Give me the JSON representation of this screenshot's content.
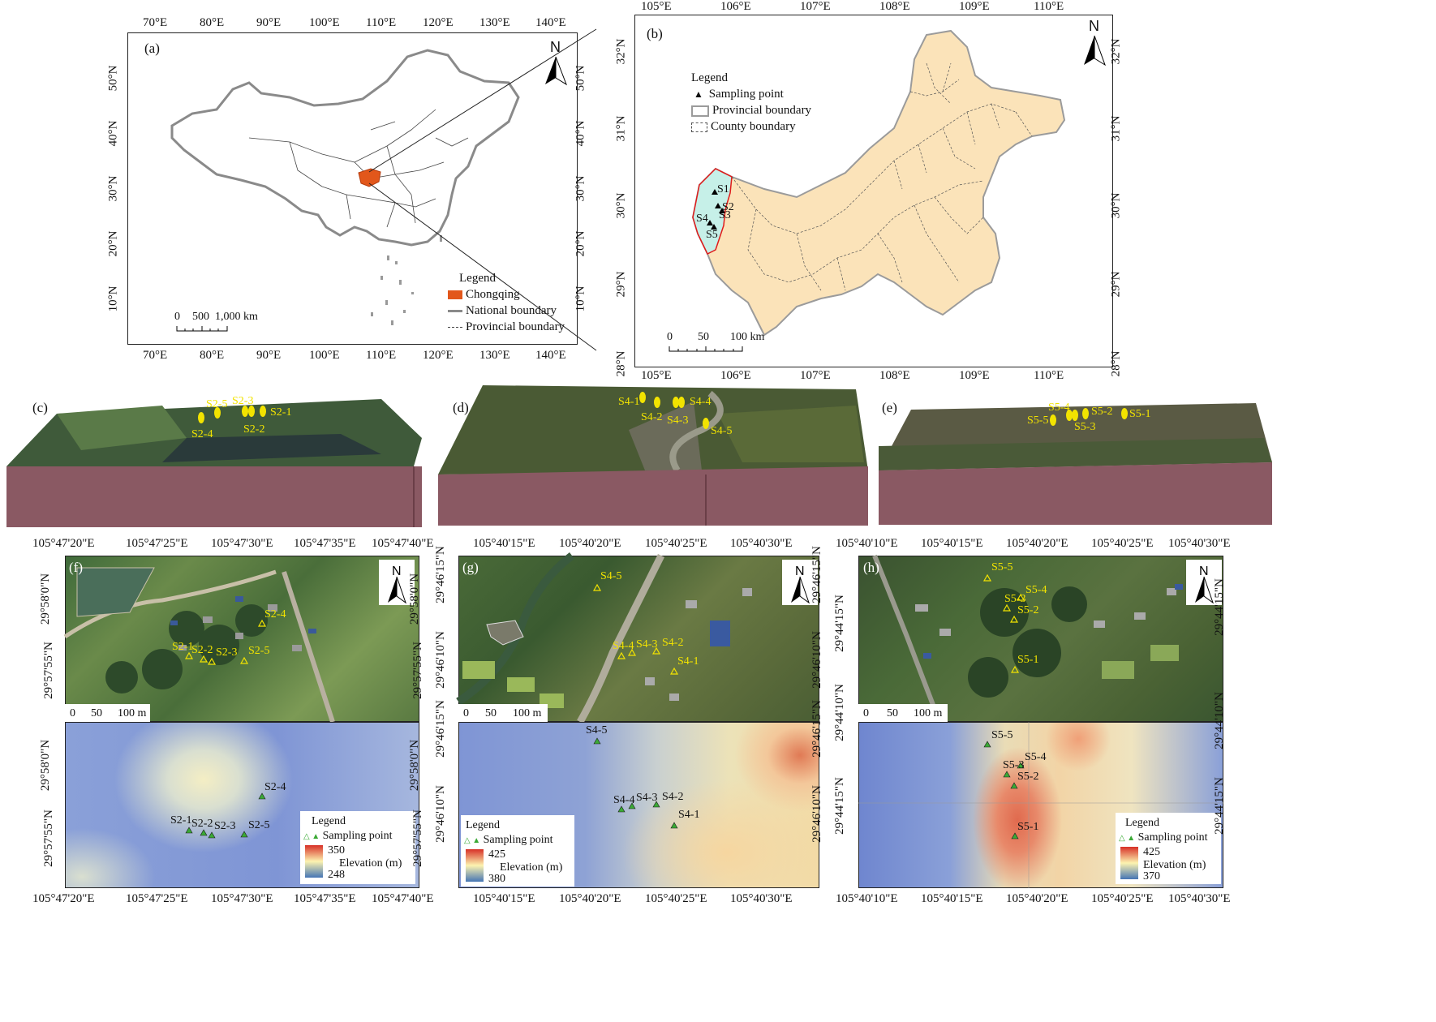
{
  "panel_a": {
    "label": "(a)",
    "lon_ticks": [
      "70°E",
      "80°E",
      "90°E",
      "100°E",
      "110°E",
      "120°E",
      "130°E",
      "140°E"
    ],
    "lat_ticks": [
      "10°N",
      "20°N",
      "30°N",
      "40°N",
      "50°N"
    ],
    "north": "N",
    "scale": {
      "zero": "0",
      "mid": "500",
      "end": "1,000 km"
    },
    "legend": {
      "title": "Legend",
      "items": [
        "Chongqing",
        "National boundary",
        "Provincial boundary"
      ]
    },
    "colors": {
      "chongqing": "#e2571b"
    }
  },
  "panel_b": {
    "label": "(b)",
    "lon_ticks": [
      "105°E",
      "106°E",
      "107°E",
      "108°E",
      "109°E",
      "110°E"
    ],
    "lat_ticks": [
      "28°N",
      "29°N",
      "30°N",
      "31°N",
      "32°N"
    ],
    "north": "N",
    "scale": {
      "zero": "0",
      "mid": "50",
      "end": "100 km"
    },
    "legend": {
      "title": "Legend",
      "items": [
        "Sampling point",
        "Provincial boundary",
        "County boundary"
      ]
    },
    "sites": [
      "S1",
      "S2",
      "S3",
      "S4",
      "S5"
    ],
    "colors": {
      "province": "#fbe3b9",
      "study": "#c6f0e8",
      "study_border": "#e01a1a"
    }
  },
  "panel_c": {
    "label": "(c)",
    "points": [
      "S2-5",
      "S2-3",
      "S2-1",
      "S2-4",
      "S2-2"
    ]
  },
  "panel_d": {
    "label": "(d)",
    "points": [
      "S4-1",
      "S4-4",
      "S4-2",
      "S4-3",
      "S4-5"
    ]
  },
  "panel_e": {
    "label": "(e)",
    "points": [
      "S5-4",
      "S5-2",
      "S5-1",
      "S5-5",
      "S5-3"
    ]
  },
  "panel_f": {
    "label": "(f)",
    "lon_ticks": [
      "105°47'20\"E",
      "105°47'25\"E",
      "105°47'30\"E",
      "105°47'35\"E",
      "105°47'40\"E"
    ],
    "lat_ticks": [
      "29°58'0\"N",
      "29°57'55\"N"
    ],
    "points": [
      "S2-4",
      "S2-1",
      "S2-2",
      "S2-3",
      "S2-5"
    ],
    "scale": {
      "zero": "0",
      "mid": "50",
      "end": "100 m"
    },
    "legend": {
      "title": "Legend",
      "point": "Sampling point",
      "elev": "Elevation (m)",
      "max": "350",
      "min": "248"
    }
  },
  "panel_g": {
    "label": "(g)",
    "lon_ticks": [
      "105°40'15\"E",
      "105°40'20\"E",
      "105°40'25\"E",
      "105°40'30\"E"
    ],
    "lat_ticks": [
      "29°46'15\"N",
      "29°46'10\"N"
    ],
    "points": [
      "S4-5",
      "S4-4",
      "S4-3",
      "S4-2",
      "S4-1"
    ],
    "scale": {
      "zero": "0",
      "mid": "50",
      "end": "100 m"
    },
    "legend": {
      "title": "Legend",
      "point": "Sampling point",
      "elev": "Elevation (m)",
      "max": "425",
      "min": "380"
    }
  },
  "panel_h": {
    "label": "(h)",
    "lon_ticks": [
      "105°40'10\"E",
      "105°40'15\"E",
      "105°40'20\"E",
      "105°40'25\"E",
      "105°40'30\"E"
    ],
    "lat_ticks": [
      "29°44'15\"N",
      "29°44'10\"N"
    ],
    "points": [
      "S5-5",
      "S5-4",
      "S5-3",
      "S5-2",
      "S5-1"
    ],
    "scale": {
      "zero": "0",
      "mid": "50",
      "end": "100 m"
    },
    "legend": {
      "title": "Legend",
      "point": "Sampling point",
      "elev": "Elevation (m)",
      "max": "425",
      "min": "370"
    }
  }
}
